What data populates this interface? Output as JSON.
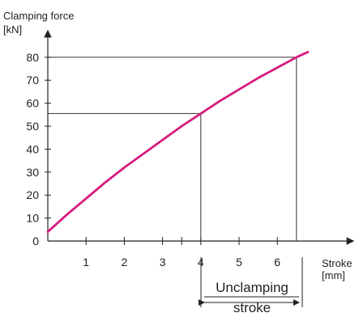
{
  "chart_data": {
    "type": "line",
    "ylabel_line1": "Clamping force",
    "ylabel_line2": "[kN]",
    "xlabel_line1": "Stroke",
    "xlabel_line2": "[mm]",
    "xlim": [
      0,
      7
    ],
    "ylim": [
      0,
      85
    ],
    "x_ticks": [
      1,
      2,
      3,
      4,
      5,
      6
    ],
    "y_ticks": [
      0,
      10,
      20,
      30,
      40,
      50,
      60,
      70,
      80
    ],
    "x_minor_ticks": [
      3.5
    ],
    "series": [
      {
        "color": "#d81b7f",
        "x": [
          0,
          0.5,
          1,
          1.5,
          2,
          2.5,
          3,
          3.5,
          4,
          4.5,
          5,
          5.5,
          6,
          6.5,
          6.8
        ],
        "y": [
          4,
          11.5,
          18.5,
          25.5,
          32,
          38,
          44,
          50,
          55.5,
          61,
          66,
          71,
          75.5,
          80,
          82.3
        ]
      }
    ],
    "reference_points": [
      {
        "x": 4,
        "y": 55.5
      },
      {
        "x": 6.5,
        "y": 80
      }
    ],
    "annotation": {
      "line1": "Unclamping",
      "line2": "stroke",
      "from_x": 4,
      "to_x": 6.5
    }
  }
}
